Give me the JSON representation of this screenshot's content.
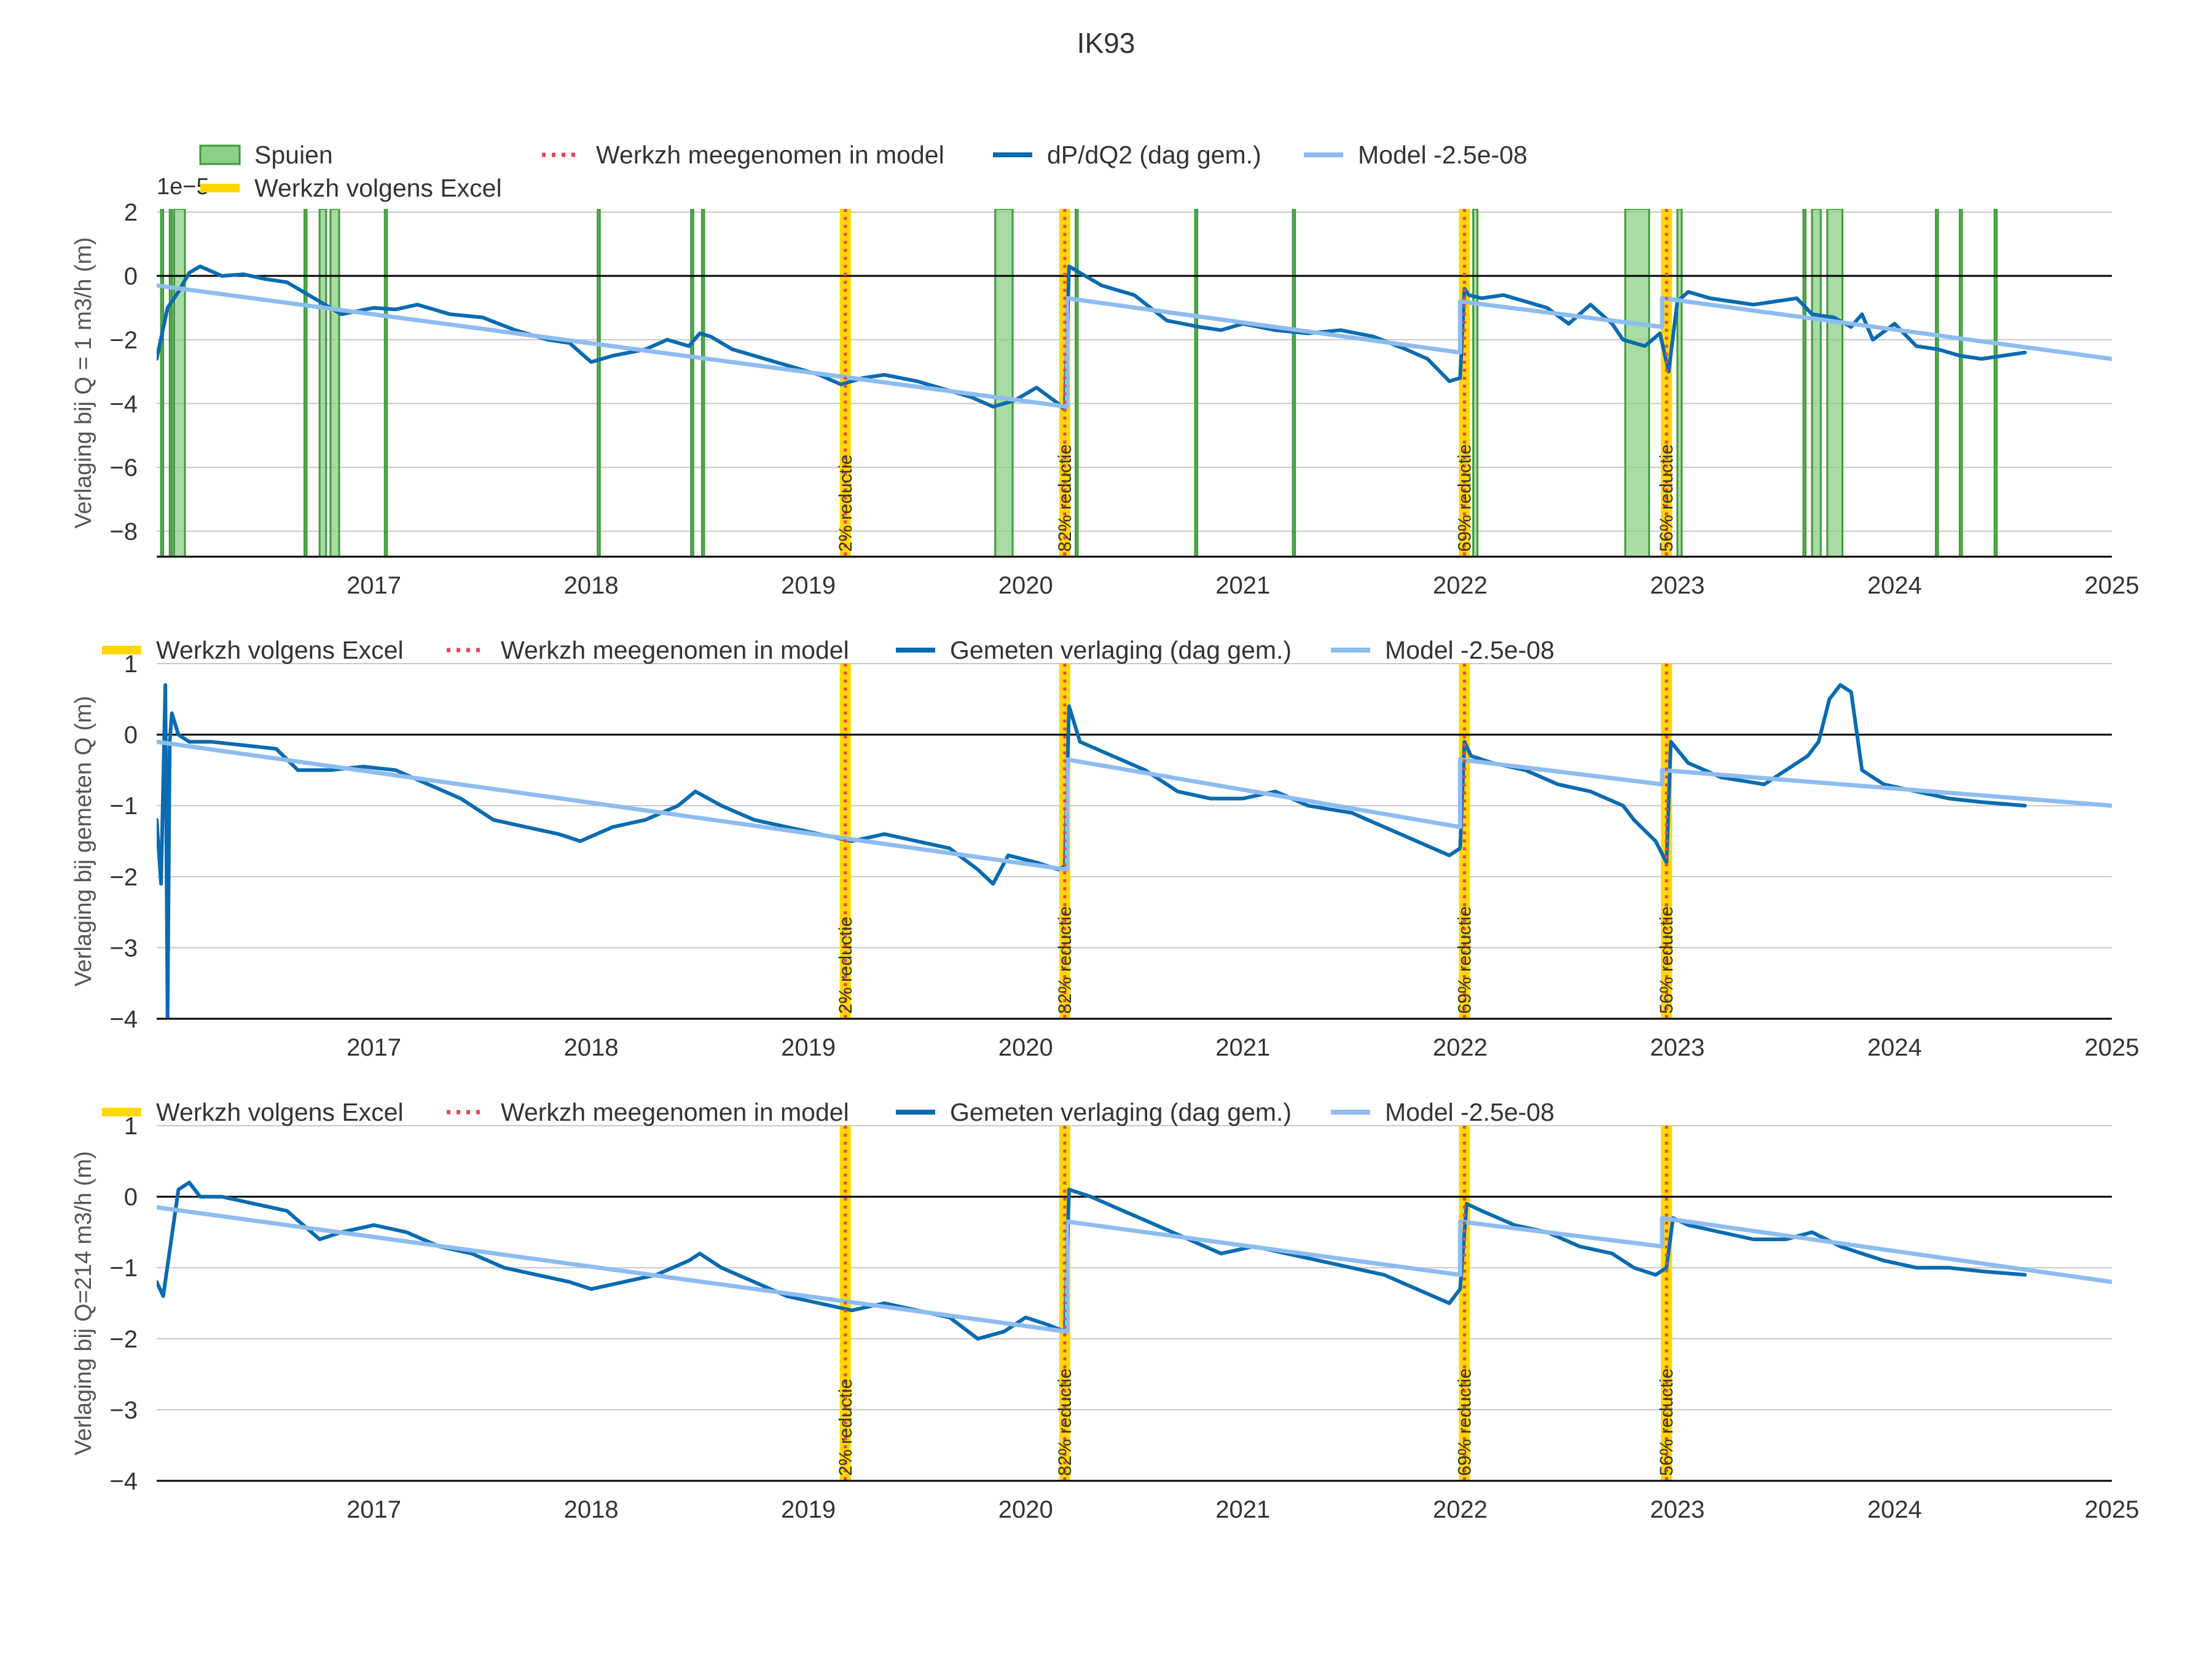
{
  "title": "IK93",
  "colors": {
    "spuien_fill": "#8ccf85",
    "spuien_edge": "#3f9a3a",
    "excel": "#ffd700",
    "model_dot": "#e8455a",
    "measured": "#0a6bb0",
    "model": "#8dbdf0",
    "zero": "#000000",
    "grid": "#c8c8c8"
  },
  "chart_data": [
    {
      "type": "line",
      "ylabel": "Verlaging bij Q = 1 m3/h (m)",
      "exponent_label": "1e−5",
      "ylim": [
        -8.8,
        2.1
      ],
      "yticks": [
        2,
        0,
        -2,
        -4,
        -6,
        -8
      ],
      "ytick_labels": [
        "2",
        "0",
        "−2",
        "−4",
        "−6",
        "−8"
      ],
      "xlim": [
        2016.0,
        2025.0
      ],
      "xticks": [
        2017,
        2018,
        2019,
        2020,
        2021,
        2022,
        2023,
        2024,
        2025
      ],
      "xtick_labels": [
        "2017",
        "2018",
        "2019",
        "2020",
        "2021",
        "2022",
        "2023",
        "2024",
        "2025"
      ],
      "legend": [
        {
          "key": "spuien",
          "label": "Spuien"
        },
        {
          "key": "model_dot",
          "label": "Werkzh meegenomen in model"
        },
        {
          "key": "measured",
          "label": "dP/dQ2 (dag gem.)"
        },
        {
          "key": "model",
          "label": "Model -2.5e-08"
        },
        {
          "key": "excel",
          "label": "Werkzh volgens Excel"
        }
      ],
      "spuien_periods": [
        [
          2016.02,
          2016.03
        ],
        [
          2016.06,
          2016.07
        ],
        [
          2016.08,
          2016.13
        ],
        [
          2016.68,
          2016.69
        ],
        [
          2016.75,
          2016.78
        ],
        [
          2016.8,
          2016.84
        ],
        [
          2017.05,
          2017.06
        ],
        [
          2018.03,
          2018.04
        ],
        [
          2018.46,
          2018.47
        ],
        [
          2018.51,
          2018.52
        ],
        [
          2019.86,
          2019.94
        ],
        [
          2020.23,
          2020.24
        ],
        [
          2020.78,
          2020.79
        ],
        [
          2021.23,
          2021.24
        ],
        [
          2022.0,
          2022.02
        ],
        [
          2022.06,
          2022.08
        ],
        [
          2022.76,
          2022.87
        ],
        [
          2022.94,
          2022.97
        ],
        [
          2023.0,
          2023.02
        ],
        [
          2023.58,
          2023.59
        ],
        [
          2023.62,
          2023.66
        ],
        [
          2023.69,
          2023.76
        ],
        [
          2024.19,
          2024.2
        ],
        [
          2024.3,
          2024.31
        ],
        [
          2024.46,
          2024.47
        ]
      ],
      "series": [
        {
          "name": "dP/dQ2 (dag gem.)",
          "key": "measured",
          "x": [
            2016.0,
            2016.05,
            2016.1,
            2016.15,
            2016.2,
            2016.3,
            2016.4,
            2016.5,
            2016.6,
            2016.75,
            2016.85,
            2017.0,
            2017.1,
            2017.2,
            2017.35,
            2017.5,
            2017.65,
            2017.8,
            2017.9,
            2018.0,
            2018.1,
            2018.25,
            2018.35,
            2018.45,
            2018.5,
            2018.55,
            2018.65,
            2018.8,
            2018.95,
            2019.05,
            2019.15,
            2019.25,
            2019.35,
            2019.5,
            2019.65,
            2019.75,
            2019.85,
            2019.95,
            2020.05,
            2020.15,
            2020.18,
            2020.2,
            2020.25,
            2020.35,
            2020.5,
            2020.65,
            2020.8,
            2020.9,
            2021.0,
            2021.15,
            2021.3,
            2021.45,
            2021.6,
            2021.75,
            2021.85,
            2021.95,
            2022.0,
            2022.02,
            2022.04,
            2022.1,
            2022.2,
            2022.3,
            2022.4,
            2022.5,
            2022.6,
            2022.7,
            2022.75,
            2022.85,
            2022.92,
            2022.96,
            2023.0,
            2023.05,
            2023.15,
            2023.25,
            2023.35,
            2023.45,
            2023.55,
            2023.62,
            2023.72,
            2023.8,
            2023.85,
            2023.9,
            2024.0,
            2024.1,
            2024.2,
            2024.3,
            2024.4,
            2024.5,
            2024.6
          ],
          "y": [
            -2.6,
            -1.0,
            -0.5,
            0.1,
            0.3,
            0.0,
            0.05,
            -0.1,
            -0.2,
            -0.8,
            -1.2,
            -1.0,
            -1.05,
            -0.9,
            -1.2,
            -1.3,
            -1.7,
            -2.0,
            -2.1,
            -2.7,
            -2.5,
            -2.3,
            -2.0,
            -2.2,
            -1.8,
            -1.9,
            -2.3,
            -2.6,
            -2.9,
            -3.1,
            -3.4,
            -3.2,
            -3.1,
            -3.3,
            -3.6,
            -3.8,
            -4.1,
            -3.9,
            -3.5,
            -4.0,
            -4.2,
            0.3,
            0.1,
            -0.3,
            -0.6,
            -1.4,
            -1.6,
            -1.7,
            -1.5,
            -1.7,
            -1.8,
            -1.7,
            -1.9,
            -2.3,
            -2.6,
            -3.3,
            -3.2,
            -0.4,
            -0.6,
            -0.7,
            -0.6,
            -0.8,
            -1.0,
            -1.5,
            -0.9,
            -1.5,
            -2.0,
            -2.2,
            -1.8,
            -3.0,
            -0.8,
            -0.5,
            -0.7,
            -0.8,
            -0.9,
            -0.8,
            -0.7,
            -1.2,
            -1.3,
            -1.6,
            -1.2,
            -2.0,
            -1.5,
            -2.2,
            -2.3,
            -2.5,
            -2.6,
            -2.5,
            -2.4
          ]
        },
        {
          "name": "Model -2.5e-08",
          "key": "model",
          "x": [
            2016.0,
            2020.19,
            2020.19,
            2022.0,
            2022.0,
            2022.93,
            2022.93,
            2025.0
          ],
          "y": [
            -0.3,
            -4.1,
            -0.7,
            -2.4,
            -0.8,
            -1.6,
            -0.7,
            -2.6
          ]
        }
      ],
      "events": [
        {
          "x": 2019.17,
          "label": "2% reductie"
        },
        {
          "x": 2020.18,
          "label": "82% reductie"
        },
        {
          "x": 2022.02,
          "label": "69% reductie"
        },
        {
          "x": 2022.95,
          "label": "56% reductie"
        }
      ]
    },
    {
      "type": "line",
      "ylabel": "Verlaging bij gemeten Q (m)",
      "ylim": [
        -4,
        1
      ],
      "yticks": [
        1,
        0,
        -1,
        -2,
        -3,
        -4
      ],
      "ytick_labels": [
        "1",
        "0",
        "−1",
        "−2",
        "−3",
        "−4"
      ],
      "xlim": [
        2016.0,
        2025.0
      ],
      "xticks": [
        2017,
        2018,
        2019,
        2020,
        2021,
        2022,
        2023,
        2024,
        2025
      ],
      "xtick_labels": [
        "2017",
        "2018",
        "2019",
        "2020",
        "2021",
        "2022",
        "2023",
        "2024",
        "2025"
      ],
      "legend": [
        {
          "key": "excel",
          "label": "Werkzh volgens Excel"
        },
        {
          "key": "model_dot",
          "label": "Werkzh meegenomen in model"
        },
        {
          "key": "measured",
          "label": "Gemeten verlaging (dag gem.)"
        },
        {
          "key": "model",
          "label": "Model -2.5e-08"
        }
      ],
      "series": [
        {
          "name": "Gemeten verlaging (dag gem.)",
          "key": "measured",
          "x": [
            2016.0,
            2016.02,
            2016.04,
            2016.05,
            2016.06,
            2016.07,
            2016.1,
            2016.15,
            2016.25,
            2016.4,
            2016.55,
            2016.65,
            2016.8,
            2016.95,
            2017.1,
            2017.25,
            2017.4,
            2017.55,
            2017.7,
            2017.85,
            2017.95,
            2018.1,
            2018.25,
            2018.4,
            2018.48,
            2018.6,
            2018.75,
            2018.9,
            2019.05,
            2019.2,
            2019.35,
            2019.5,
            2019.65,
            2019.78,
            2019.85,
            2019.92,
            2020.05,
            2020.15,
            2020.18,
            2020.2,
            2020.25,
            2020.4,
            2020.55,
            2020.7,
            2020.85,
            2021.0,
            2021.15,
            2021.3,
            2021.5,
            2021.65,
            2021.8,
            2021.95,
            2022.0,
            2022.02,
            2022.05,
            2022.15,
            2022.3,
            2022.45,
            2022.6,
            2022.75,
            2022.8,
            2022.9,
            2022.95,
            2022.97,
            2023.05,
            2023.2,
            2023.4,
            2023.5,
            2023.6,
            2023.65,
            2023.7,
            2023.75,
            2023.8,
            2023.85,
            2023.95,
            2024.1,
            2024.25,
            2024.4,
            2024.6
          ],
          "y": [
            -1.2,
            -2.1,
            0.7,
            -4.0,
            -0.1,
            0.3,
            0.0,
            -0.1,
            -0.1,
            -0.15,
            -0.2,
            -0.5,
            -0.5,
            -0.45,
            -0.5,
            -0.7,
            -0.9,
            -1.2,
            -1.3,
            -1.4,
            -1.5,
            -1.3,
            -1.2,
            -1.0,
            -0.8,
            -1.0,
            -1.2,
            -1.3,
            -1.4,
            -1.5,
            -1.4,
            -1.5,
            -1.6,
            -1.9,
            -2.1,
            -1.7,
            -1.8,
            -1.9,
            -1.85,
            0.4,
            -0.1,
            -0.3,
            -0.5,
            -0.8,
            -0.9,
            -0.9,
            -0.8,
            -1.0,
            -1.1,
            -1.3,
            -1.5,
            -1.7,
            -1.6,
            -0.1,
            -0.3,
            -0.4,
            -0.5,
            -0.7,
            -0.8,
            -1.0,
            -1.2,
            -1.5,
            -1.8,
            -0.1,
            -0.4,
            -0.6,
            -0.7,
            -0.5,
            -0.3,
            -0.1,
            0.5,
            0.7,
            0.6,
            -0.5,
            -0.7,
            -0.8,
            -0.9,
            -0.95,
            -1.0
          ]
        },
        {
          "name": "Model -2.5e-08",
          "key": "model",
          "x": [
            2016.0,
            2020.19,
            2020.19,
            2022.0,
            2022.0,
            2022.93,
            2022.93,
            2025.0
          ],
          "y": [
            -0.1,
            -1.9,
            -0.35,
            -1.3,
            -0.35,
            -0.7,
            -0.5,
            -1.0
          ]
        }
      ],
      "events": [
        {
          "x": 2019.17,
          "label": "2% reductie"
        },
        {
          "x": 2020.18,
          "label": "82% reductie"
        },
        {
          "x": 2022.02,
          "label": "69% reductie"
        },
        {
          "x": 2022.95,
          "label": "56% reductie"
        }
      ]
    },
    {
      "type": "line",
      "ylabel": "Verlaging bij Q=214 m3/h (m)",
      "ylim": [
        -4,
        1
      ],
      "yticks": [
        1,
        0,
        -1,
        -2,
        -3,
        -4
      ],
      "ytick_labels": [
        "1",
        "0",
        "−1",
        "−2",
        "−3",
        "−4"
      ],
      "xlim": [
        2016.0,
        2025.0
      ],
      "xticks": [
        2017,
        2018,
        2019,
        2020,
        2021,
        2022,
        2023,
        2024,
        2025
      ],
      "xtick_labels": [
        "2017",
        "2018",
        "2019",
        "2020",
        "2021",
        "2022",
        "2023",
        "2024",
        "2025"
      ],
      "legend": [
        {
          "key": "excel",
          "label": "Werkzh volgens Excel"
        },
        {
          "key": "model_dot",
          "label": "Werkzh meegenomen in model"
        },
        {
          "key": "measured",
          "label": "Gemeten verlaging (dag gem.)"
        },
        {
          "key": "model",
          "label": "Model -2.5e-08"
        }
      ],
      "series": [
        {
          "name": "Gemeten verlaging (dag gem.)",
          "key": "measured",
          "x": [
            2016.0,
            2016.03,
            2016.1,
            2016.15,
            2016.2,
            2016.3,
            2016.45,
            2016.6,
            2016.75,
            2016.85,
            2017.0,
            2017.15,
            2017.3,
            2017.45,
            2017.6,
            2017.75,
            2017.9,
            2018.0,
            2018.15,
            2018.3,
            2018.45,
            2018.5,
            2018.6,
            2018.75,
            2018.9,
            2019.05,
            2019.2,
            2019.35,
            2019.5,
            2019.65,
            2019.78,
            2019.9,
            2020.0,
            2020.1,
            2020.18,
            2020.2,
            2020.3,
            2020.45,
            2020.6,
            2020.75,
            2020.9,
            2021.05,
            2021.2,
            2021.35,
            2021.5,
            2021.65,
            2021.8,
            2021.95,
            2022.0,
            2022.03,
            2022.1,
            2022.25,
            2022.4,
            2022.55,
            2022.7,
            2022.8,
            2022.9,
            2022.95,
            2022.98,
            2023.05,
            2023.2,
            2023.35,
            2023.5,
            2023.62,
            2023.75,
            2023.85,
            2023.95,
            2024.1,
            2024.25,
            2024.4,
            2024.6
          ],
          "y": [
            -1.2,
            -1.4,
            0.1,
            0.2,
            0.0,
            0.0,
            -0.1,
            -0.2,
            -0.6,
            -0.5,
            -0.4,
            -0.5,
            -0.7,
            -0.8,
            -1.0,
            -1.1,
            -1.2,
            -1.3,
            -1.2,
            -1.1,
            -0.9,
            -0.8,
            -1.0,
            -1.2,
            -1.4,
            -1.5,
            -1.6,
            -1.5,
            -1.6,
            -1.7,
            -2.0,
            -1.9,
            -1.7,
            -1.8,
            -1.9,
            0.1,
            0.0,
            -0.2,
            -0.4,
            -0.6,
            -0.8,
            -0.7,
            -0.8,
            -0.9,
            -1.0,
            -1.1,
            -1.3,
            -1.5,
            -1.3,
            -0.1,
            -0.2,
            -0.4,
            -0.5,
            -0.7,
            -0.8,
            -1.0,
            -1.1,
            -1.0,
            -0.3,
            -0.4,
            -0.5,
            -0.6,
            -0.6,
            -0.5,
            -0.7,
            -0.8,
            -0.9,
            -1.0,
            -1.0,
            -1.05,
            -1.1
          ]
        },
        {
          "name": "Model -2.5e-08",
          "key": "model",
          "x": [
            2016.0,
            2020.19,
            2020.19,
            2022.0,
            2022.0,
            2022.93,
            2022.93,
            2025.0
          ],
          "y": [
            -0.15,
            -1.9,
            -0.35,
            -1.1,
            -0.35,
            -0.7,
            -0.3,
            -1.2
          ]
        }
      ],
      "events": [
        {
          "x": 2019.17,
          "label": "2% reductie"
        },
        {
          "x": 2020.18,
          "label": "82% reductie"
        },
        {
          "x": 2022.02,
          "label": "69% reductie"
        },
        {
          "x": 2022.95,
          "label": "56% reductie"
        }
      ]
    }
  ]
}
